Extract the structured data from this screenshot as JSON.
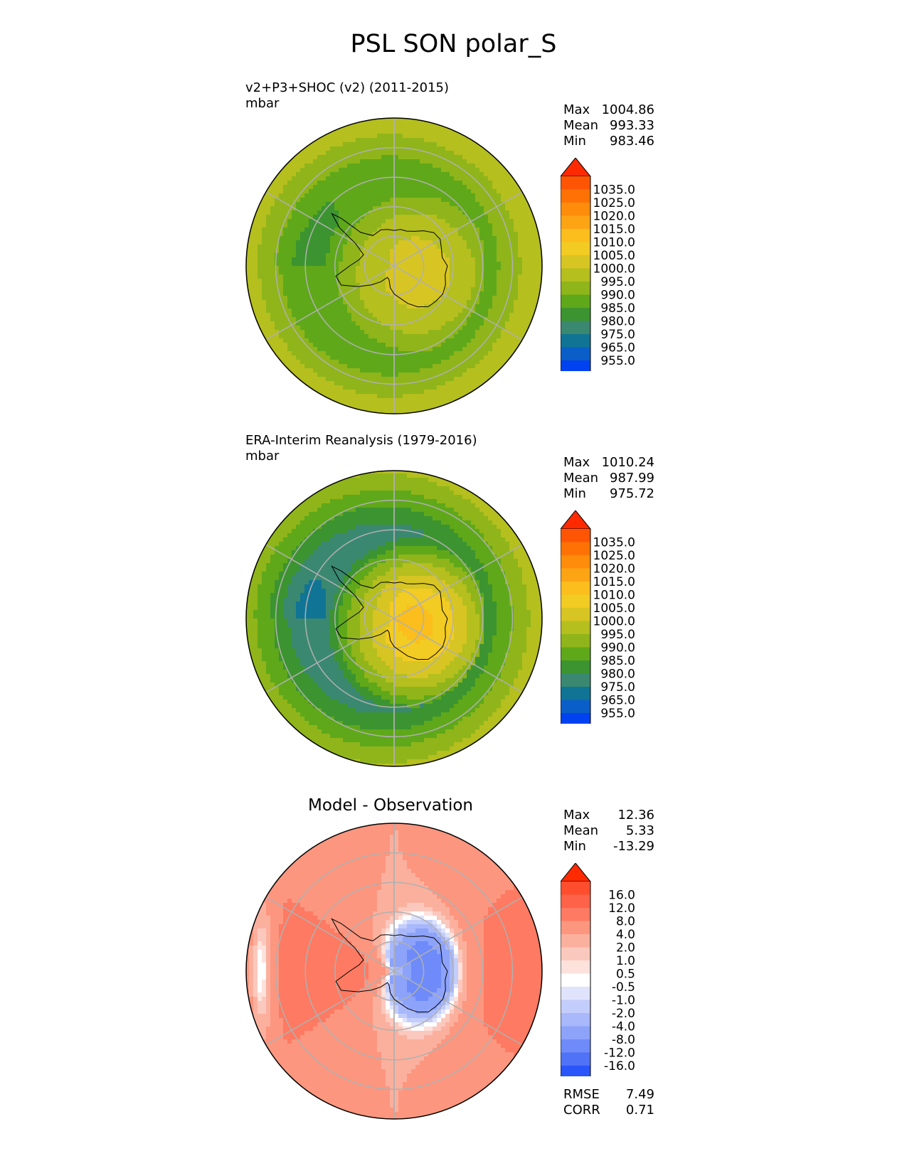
{
  "title": "PSL SON polar_S",
  "colors": {
    "grid": "#b0b0b0",
    "coast": "#000000"
  },
  "panels": [
    {
      "title_line1": "v2+P3+SHOC (v2) (2011-2015)",
      "title_line2": "mbar",
      "stats": [
        {
          "label": "Max",
          "value": "1004.86"
        },
        {
          "label": "Mean",
          "value": "993.33"
        },
        {
          "label": "Min",
          "value": "983.46"
        }
      ],
      "colorbar": {
        "ticks": [
          "1035.0",
          "1025.0",
          "1020.0",
          "1015.0",
          "1010.0",
          "1005.0",
          "1000.0",
          "995.0",
          "990.0",
          "985.0",
          "980.0",
          "975.0",
          "965.0",
          "955.0"
        ],
        "colors": [
          "#fe5505",
          "#fe7205",
          "#ff8c0a",
          "#fda415",
          "#fbbe1c",
          "#f2cb23",
          "#d7c523",
          "#b5bf1e",
          "#8fb51a",
          "#5fa81a",
          "#3c9430",
          "#3a8870",
          "#107495",
          "#0a5ec8",
          "#0041f0"
        ],
        "over": "#ff2a00",
        "under": "#0533ff"
      },
      "field": {
        "pole": 1002,
        "polar_lobe": 1,
        "ring": 986,
        "outer": 999,
        "low_lobe": -3
      }
    },
    {
      "title_line1": "ERA-Interim Reanalysis (1979-2016)",
      "title_line2": "mbar",
      "stats": [
        {
          "label": "Max",
          "value": "1010.24"
        },
        {
          "label": "Mean",
          "value": "987.99"
        },
        {
          "label": "Min",
          "value": "975.72"
        }
      ],
      "colorbar": {
        "ticks": [
          "1035.0",
          "1025.0",
          "1020.0",
          "1015.0",
          "1010.0",
          "1005.0",
          "1000.0",
          "995.0",
          "990.0",
          "985.0",
          "980.0",
          "975.0",
          "965.0",
          "955.0"
        ],
        "colors": [
          "#fe5505",
          "#fe7205",
          "#ff8c0a",
          "#fda415",
          "#fbbe1c",
          "#f2cb23",
          "#d7c523",
          "#b5bf1e",
          "#8fb51a",
          "#5fa81a",
          "#3c9430",
          "#3a8870",
          "#107495",
          "#0a5ec8",
          "#0041f0"
        ],
        "over": "#ff2a00",
        "under": "#0533ff"
      },
      "field": {
        "pole": 1009,
        "polar_lobe": 3,
        "ring": 979,
        "outer": 996,
        "low_lobe": -4
      }
    },
    {
      "title_center": "Model - Observation",
      "stats": [
        {
          "label": "Max",
          "value": "12.36"
        },
        {
          "label": "Mean",
          "value": "5.33"
        },
        {
          "label": "Min",
          "value": "-13.29"
        }
      ],
      "colorbar": {
        "ticks": [
          "16.0",
          "12.0",
          "8.0",
          "4.0",
          "2.0",
          "1.0",
          "0.5",
          "-0.5",
          "-1.0",
          "-2.0",
          "-4.0",
          "-8.0",
          "-12.0",
          "-16.0"
        ],
        "colors": [
          "#fe4e2e",
          "#fe6248",
          "#fe7a62",
          "#fc967f",
          "#fbb09e",
          "#fbc8bd",
          "#fde2dc",
          "#ffffff",
          "#dfe3fc",
          "#c3cdfb",
          "#a8b8fb",
          "#8da3fa",
          "#6e8bf9",
          "#5072f7",
          "#2a55fa"
        ],
        "over": "#ff2a00",
        "under": "#0533ff"
      },
      "extra_stats": [
        {
          "label": "RMSE",
          "value": "7.49"
        },
        {
          "label": "CORR",
          "value": "0.71"
        }
      ]
    }
  ],
  "chart_data": [
    {
      "type": "heatmap",
      "title": "v2+P3+SHOC (v2) (2011-2015)",
      "units": "mbar",
      "projection": "south polar stereographic",
      "max": 1004.86,
      "mean": 993.33,
      "min": 983.46,
      "levels": [
        955,
        965,
        975,
        980,
        985,
        990,
        995,
        1000,
        1005,
        1010,
        1015,
        1020,
        1025,
        1035
      ],
      "extend": "both"
    },
    {
      "type": "heatmap",
      "title": "ERA-Interim Reanalysis (1979-2016)",
      "units": "mbar",
      "projection": "south polar stereographic",
      "max": 1010.24,
      "mean": 987.99,
      "min": 975.72,
      "levels": [
        955,
        965,
        975,
        980,
        985,
        990,
        995,
        1000,
        1005,
        1010,
        1015,
        1020,
        1025,
        1035
      ],
      "extend": "both"
    },
    {
      "type": "heatmap",
      "title": "Model - Observation",
      "projection": "south polar stereographic",
      "max": 12.36,
      "mean": 5.33,
      "min": -13.29,
      "rmse": 7.49,
      "corr": 0.71,
      "levels": [
        -16,
        -12,
        -8,
        -4,
        -2,
        -1,
        -0.5,
        0.5,
        1,
        2,
        4,
        8,
        12,
        16
      ],
      "extend": "both"
    }
  ]
}
